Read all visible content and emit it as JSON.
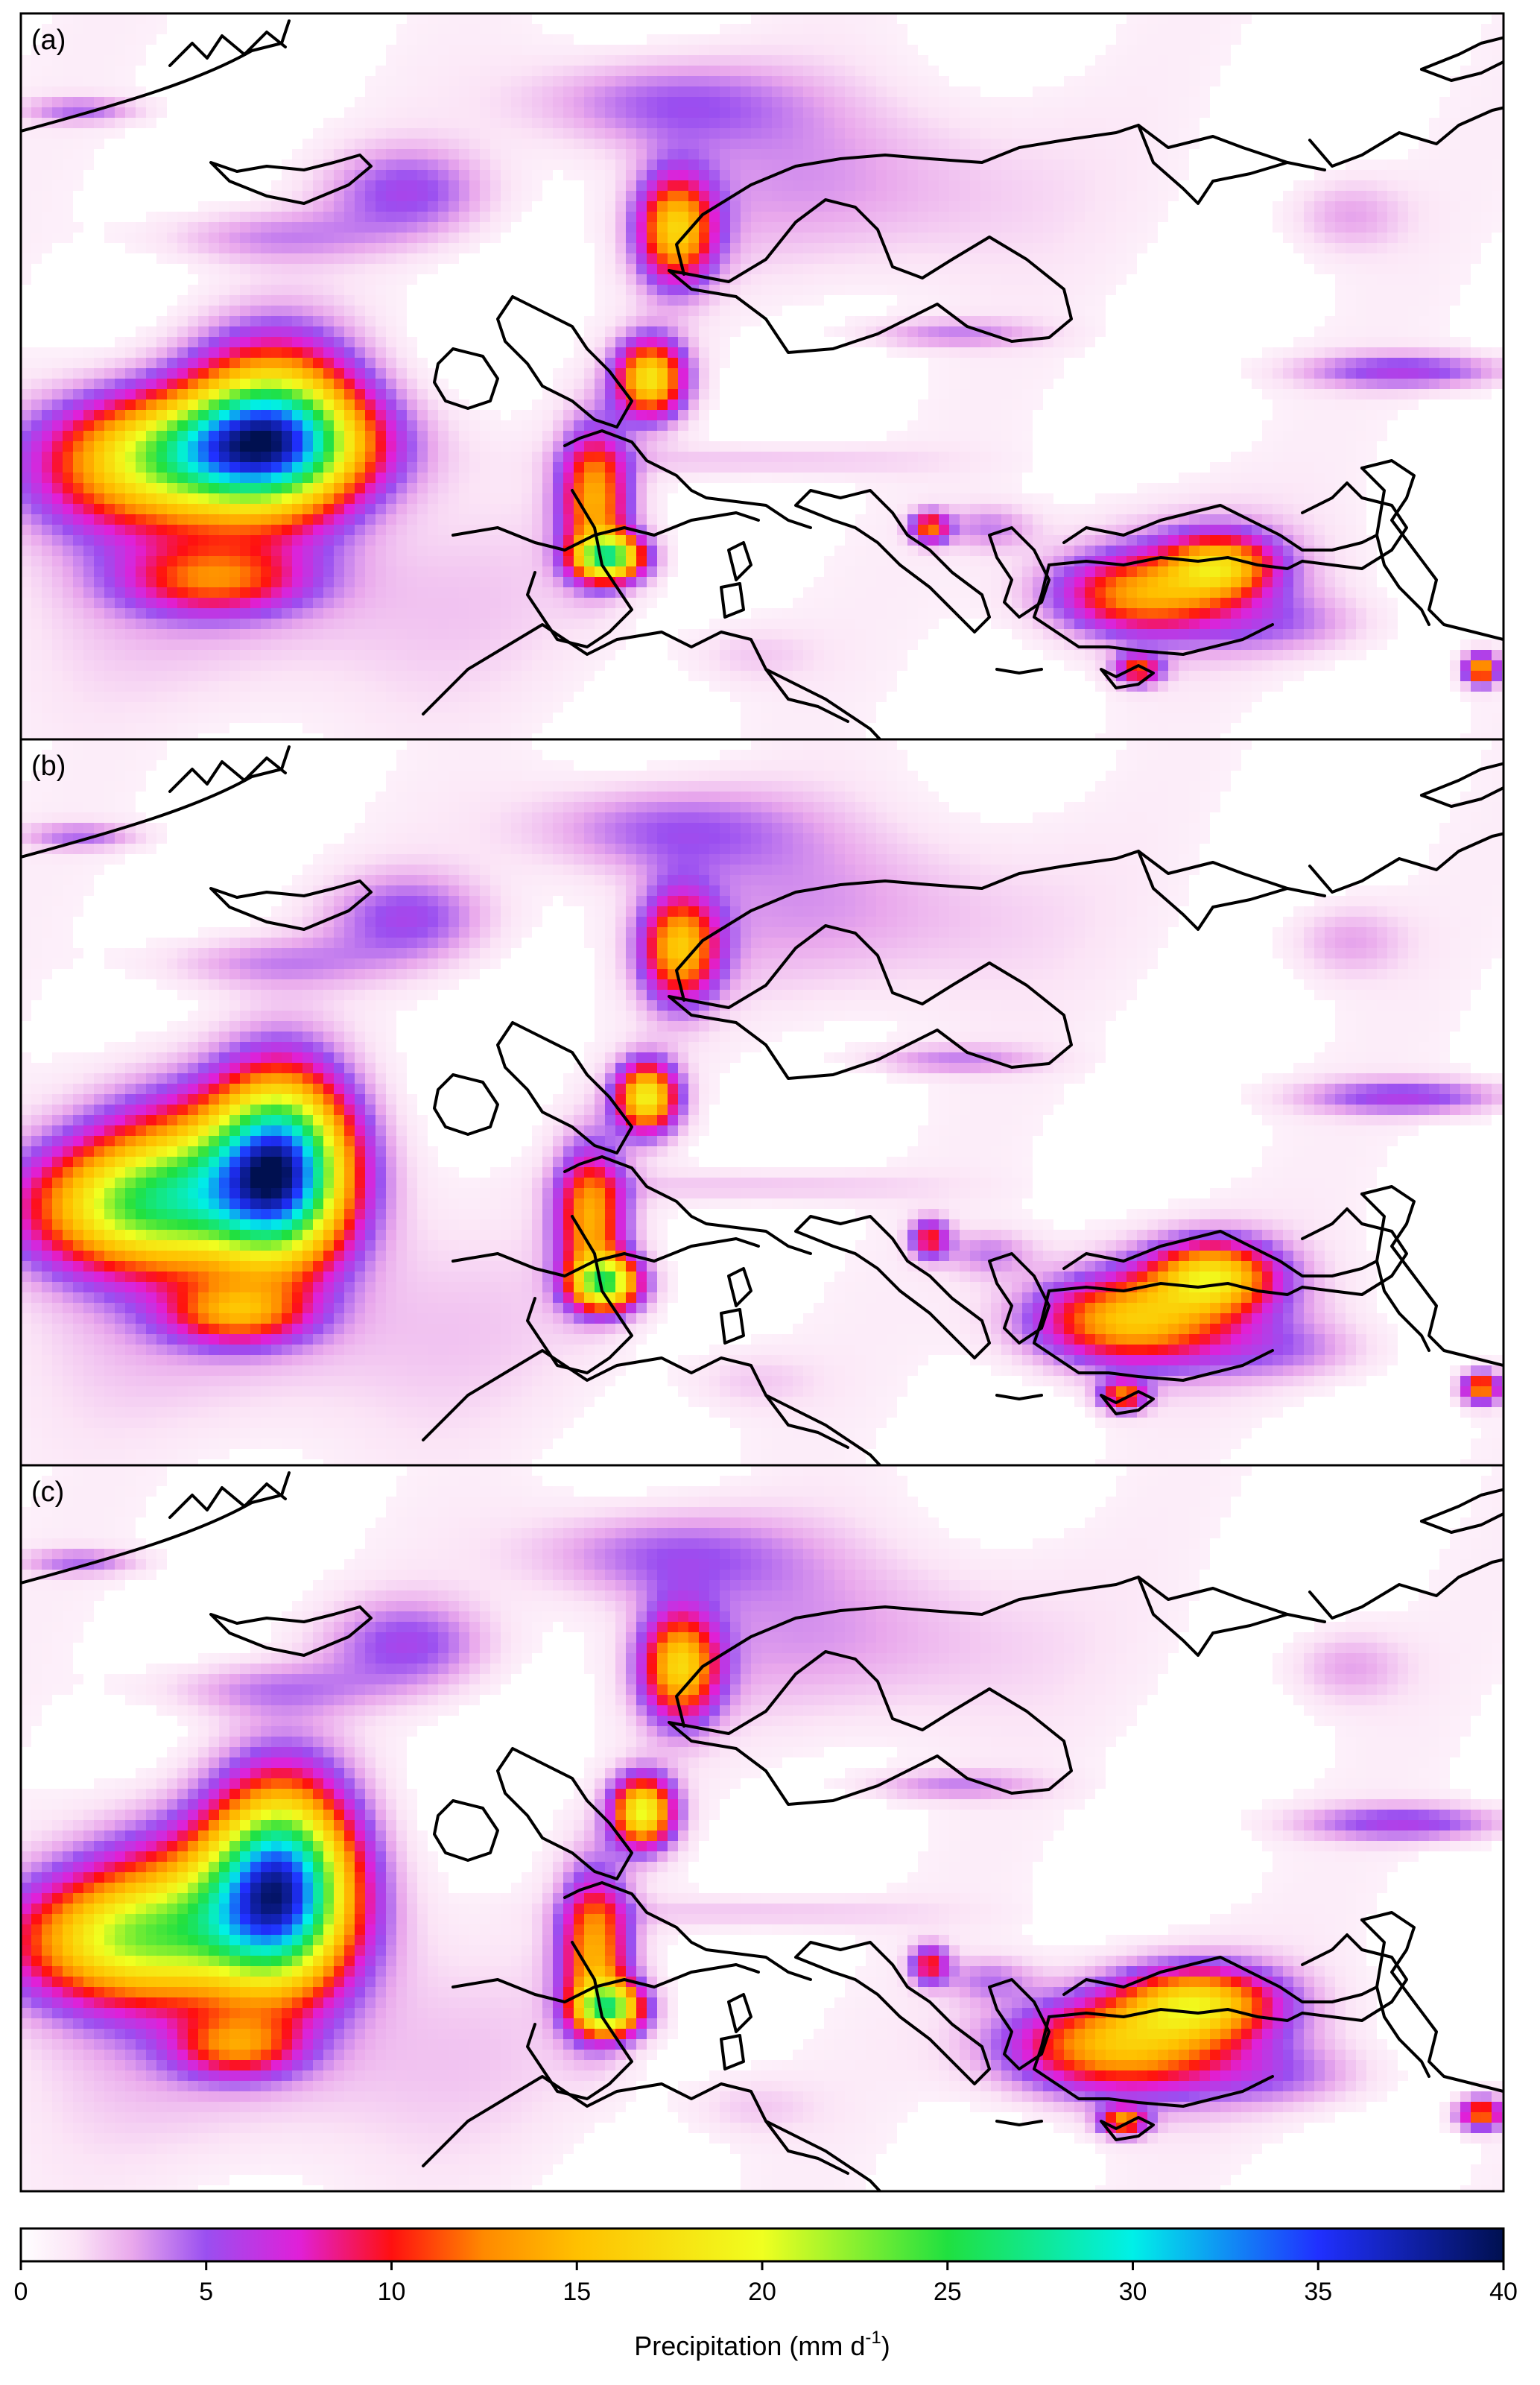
{
  "figure": {
    "panels": [
      {
        "label": "(a)",
        "variant": "a"
      },
      {
        "label": "(b)",
        "variant": "b"
      },
      {
        "label": "(c)",
        "variant": "c"
      }
    ]
  },
  "colorbar": {
    "title": "Precipitation (mm d",
    "title_sup": "-1",
    "title_close": ")",
    "min": 0,
    "max": 40,
    "ticks": [
      {
        "value": 0,
        "label": "0"
      },
      {
        "value": 5,
        "label": "5"
      },
      {
        "value": 10,
        "label": "10"
      },
      {
        "value": 15,
        "label": "15"
      },
      {
        "value": 20,
        "label": "20"
      },
      {
        "value": 25,
        "label": "25"
      },
      {
        "value": 30,
        "label": "30"
      },
      {
        "value": 35,
        "label": "35"
      },
      {
        "value": 40,
        "label": "40"
      }
    ],
    "stops": [
      {
        "value": 0,
        "color": "#ffffff"
      },
      {
        "value": 1.5,
        "color": "#fbe4f6"
      },
      {
        "value": 3,
        "color": "#e9a8ec"
      },
      {
        "value": 5,
        "color": "#9a4ff0"
      },
      {
        "value": 7.5,
        "color": "#e020d8"
      },
      {
        "value": 10,
        "color": "#ff1010"
      },
      {
        "value": 12.5,
        "color": "#ff8a00"
      },
      {
        "value": 15,
        "color": "#ffc000"
      },
      {
        "value": 20,
        "color": "#f0ff20"
      },
      {
        "value": 25,
        "color": "#20e040"
      },
      {
        "value": 30,
        "color": "#00f0e8"
      },
      {
        "value": 35,
        "color": "#2030ff"
      },
      {
        "value": 40,
        "color": "#001050"
      }
    ]
  }
}
